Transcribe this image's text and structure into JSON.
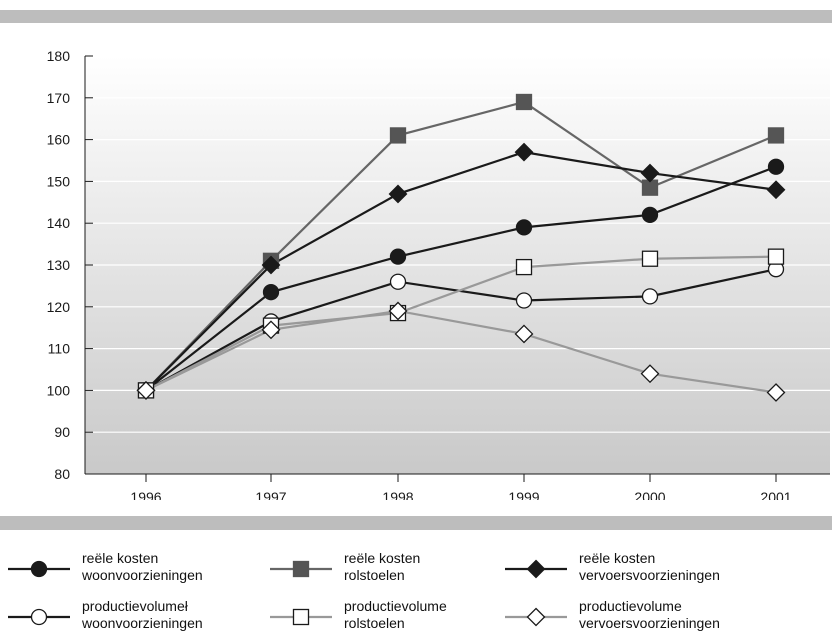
{
  "chart_data": {
    "type": "line",
    "x": [
      "1996",
      "1997",
      "1998",
      "1999",
      "2000",
      "2001"
    ],
    "ylim": [
      80,
      180
    ],
    "yticks": [
      80,
      90,
      100,
      110,
      120,
      130,
      140,
      150,
      160,
      170,
      180
    ],
    "grid": true,
    "legend_position": "bottom",
    "series": [
      {
        "name": "reële kosten woonvoorzieningen",
        "label_lines": "reële kosten\nwoonvoorzieningen",
        "values": [
          100,
          123.5,
          132,
          139,
          142,
          153.5
        ],
        "color": "#1a1a1a",
        "marker": "circle",
        "fill": "#1a1a1a"
      },
      {
        "name": "reële kosten rolstoelen",
        "label_lines": "reële kosten\nrolstoelen",
        "values": [
          100,
          131,
          161,
          169,
          148.5,
          161
        ],
        "color": "#666666",
        "marker": "square",
        "fill": "#555555"
      },
      {
        "name": "reële kosten vervoersvoorzieningen",
        "label_lines": "reële kosten\nvervoersvoorzieningen",
        "values": [
          100,
          130,
          147,
          157,
          152,
          148
        ],
        "color": "#1a1a1a",
        "marker": "diamond",
        "fill": "#1a1a1a"
      },
      {
        "name": "productievolumeł woonvoorzieningen",
        "label_lines": "productievolumeł\nwoonvoorzieningen",
        "values": [
          100,
          116.5,
          126,
          121.5,
          122.5,
          129
        ],
        "color": "#1a1a1a",
        "marker": "circle",
        "fill": "#ffffff"
      },
      {
        "name": "productievolume rolstoelen",
        "label_lines": "productievolume\nrolstoelen",
        "values": [
          100,
          115.5,
          118.5,
          129.5,
          131.5,
          132
        ],
        "color": "#999999",
        "marker": "square",
        "fill": "#ffffff"
      },
      {
        "name": "productievolume vervoersvoorzieningen",
        "label_lines": "productievolume\nvervoersvoorzieningen",
        "values": [
          100,
          114.5,
          119,
          113.5,
          104,
          99.5
        ],
        "color": "#999999",
        "marker": "diamond",
        "fill": "#ffffff"
      }
    ]
  }
}
